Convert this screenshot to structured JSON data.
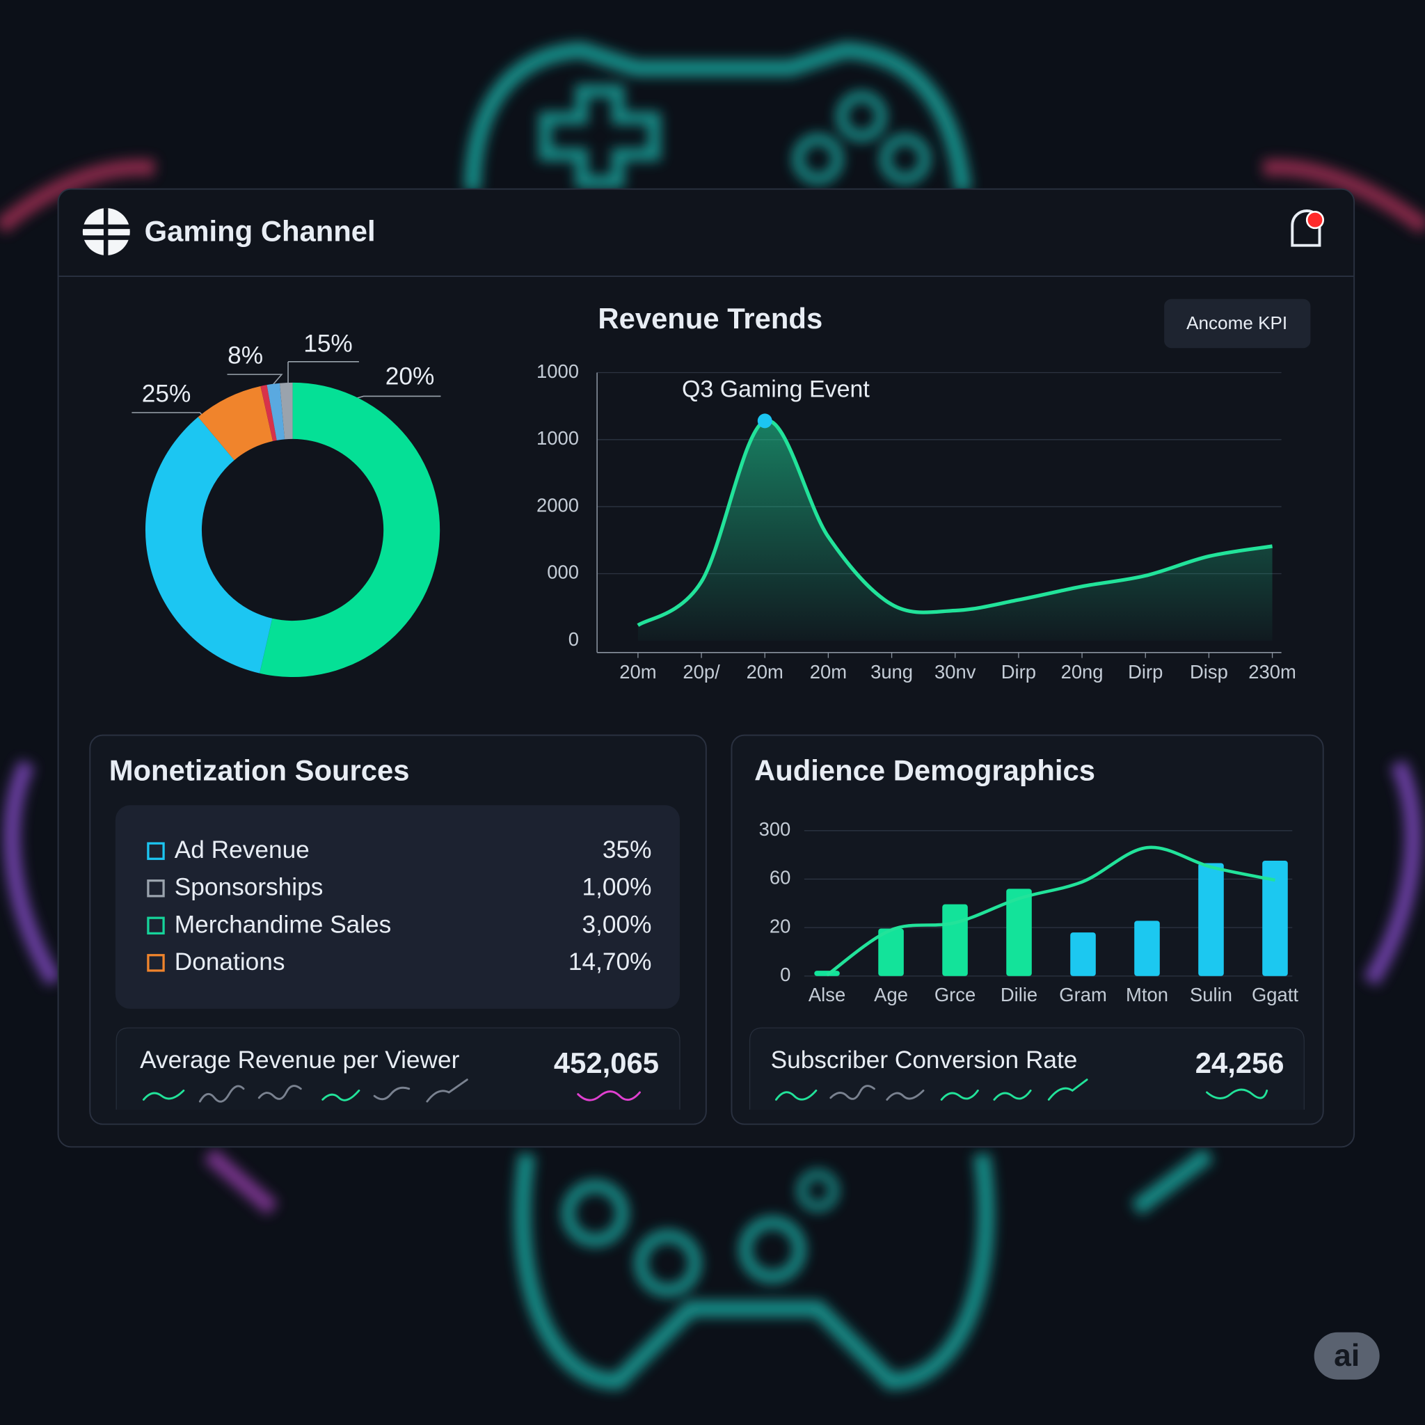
{
  "header": {
    "title": "Gaming Channel"
  },
  "donut": {
    "type": "pie",
    "values": [
      53.6,
      35.3,
      7.6,
      0.7,
      1.4,
      1.4
    ],
    "colors": [
      "#05e096",
      "#1cc6f2",
      "#f0842c",
      "#d8324a",
      "#5aa9e0",
      "#9aa3ad"
    ],
    "annotations": [
      "25%",
      "8%",
      "15%",
      "20%"
    ]
  },
  "revenue": {
    "type": "line",
    "title": "Revenue Trends",
    "button": "Ancome KPI",
    "annotation": "Q3 Gaming Event",
    "categories": [
      "20m",
      "20p/",
      "20m",
      "20m",
      "3ung",
      "30nv",
      "Dirp",
      "20ng",
      "Dirp",
      "Disp",
      "230m"
    ],
    "values": [
      0.23,
      0.88,
      3.28,
      1.55,
      0.54,
      0.45,
      0.61,
      0.81,
      0.97,
      1.26,
      1.41
    ],
    "color": "#22e39a",
    "ylim": [
      0,
      4
    ],
    "yticks": [
      0,
      {
        "value": 1,
        "label": "000"
      },
      {
        "value": 2,
        "label": "2000"
      },
      {
        "value": 3,
        "label": "1000"
      },
      {
        "value": 4,
        "label": "1000"
      }
    ],
    "grid": true
  },
  "monetization": {
    "title": "Monetization Sources",
    "rows": [
      {
        "label": "Ad Revenue",
        "value": "35%",
        "color": "#1cc6f2"
      },
      {
        "label": "Sponsorships",
        "value": "1,00%",
        "color": "#9aa3ad"
      },
      {
        "label": "Merchandime Sales",
        "value": "3,00%",
        "color": "#16d39a"
      },
      {
        "label": "Donations",
        "value": "14,70%",
        "color": "#f0842c"
      }
    ]
  },
  "arpv": {
    "label": "Average Revenue per Viewer",
    "value": "452,065"
  },
  "audience": {
    "type": "bar",
    "title": "Audience Demographics",
    "categories": [
      "Alse",
      "Age",
      "Grce",
      "Dilie",
      "Gram",
      "Mton",
      "Sulin",
      "Ggatt"
    ],
    "values": [
      0.11,
      0.98,
      1.48,
      1.8,
      0.9,
      1.14,
      2.33,
      2.38
    ],
    "colors": [
      "#13e39a",
      "#13e39a",
      "#13e39a",
      "#13e39a",
      "#1cc8f0",
      "#1cc8f0",
      "#1cc8f0",
      "#1cc8f0"
    ],
    "line": {
      "values": [
        0.02,
        0.95,
        1.1,
        1.6,
        1.95,
        2.65,
        2.25,
        1.98
      ],
      "color": "#22e39a"
    },
    "ylim": [
      0,
      3
    ],
    "yticks": [
      0,
      {
        "value": 1,
        "label": "20"
      },
      {
        "value": 2,
        "label": "60"
      },
      {
        "value": 3,
        "label": "300"
      }
    ],
    "grid": true
  },
  "conversion": {
    "label": "Subscriber Conversion Rate",
    "value": "24,256"
  },
  "watermark": "ai"
}
